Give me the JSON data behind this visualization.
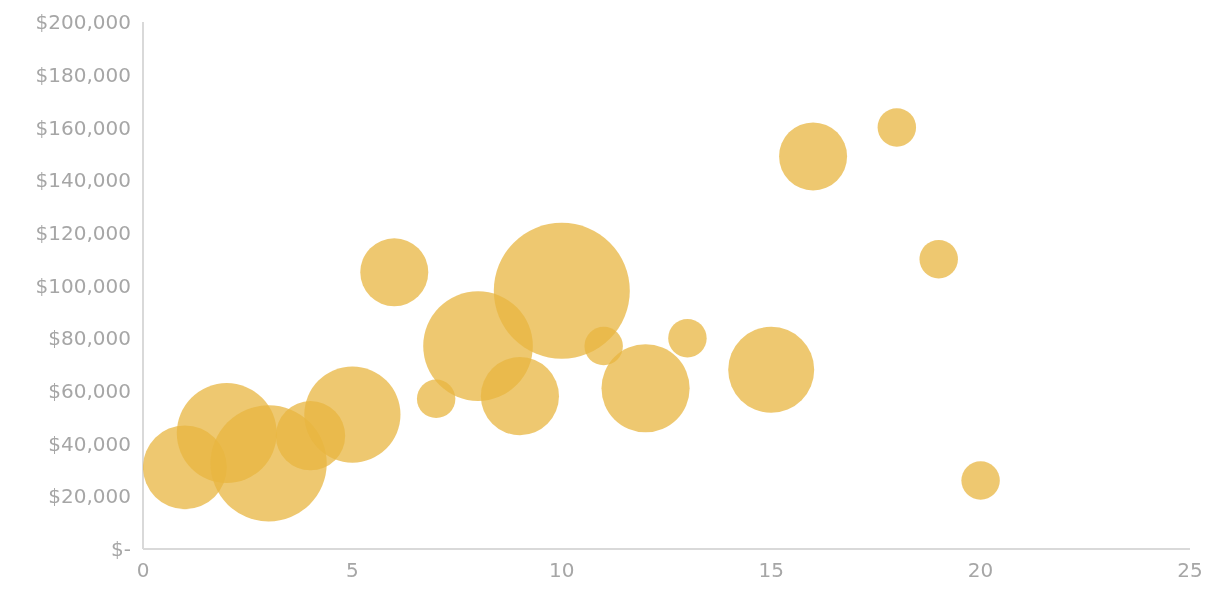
{
  "chart_data": {
    "type": "bubble",
    "color": "#e8b640",
    "x": [
      1,
      2,
      3,
      4,
      5,
      6,
      7,
      8,
      9,
      10,
      11,
      12,
      13,
      15,
      16,
      18,
      19,
      20
    ],
    "values": [
      31000,
      44000,
      32500,
      43000,
      51000,
      105000,
      57000,
      77000,
      58000,
      98000,
      77000,
      61000,
      80000,
      68000,
      149000,
      160000,
      110000,
      26000
    ],
    "sizes": [
      0.38,
      0.54,
      0.73,
      0.26,
      0.5,
      0.25,
      0.08,
      0.65,
      0.33,
      1,
      0.08,
      0.42,
      0.08,
      0.4,
      0.25,
      0.08,
      0.08,
      0.08
    ],
    "xlim": [
      0,
      25
    ],
    "xticks": [
      0,
      5,
      10,
      15,
      20,
      25
    ],
    "ylim": [
      0,
      200000
    ],
    "yticks": [
      {
        "value": 0,
        "label": "$-"
      },
      {
        "value": 20000,
        "label": "$20,000"
      },
      {
        "value": 40000,
        "label": "$40,000"
      },
      {
        "value": 60000,
        "label": "$60,000"
      },
      {
        "value": 80000,
        "label": "$80,000"
      },
      {
        "value": 100000,
        "label": "$100,000"
      },
      {
        "value": 120000,
        "label": "$120,000"
      },
      {
        "value": 140000,
        "label": "$140,000"
      },
      {
        "value": 160000,
        "label": "$160,000"
      },
      {
        "value": 180000,
        "label": "$180,000"
      },
      {
        "value": 200000,
        "label": "$200,000"
      }
    ],
    "grid": false,
    "legend": false
  }
}
